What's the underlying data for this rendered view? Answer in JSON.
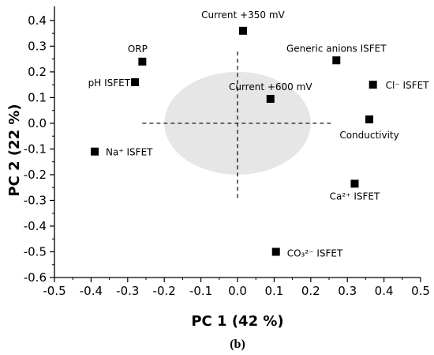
{
  "chart_data": {
    "type": "scatter",
    "title": "",
    "xlabel": "PC 1 (42 %)",
    "ylabel": "PC 2 (22 %)",
    "xlim": [
      -0.5,
      0.5
    ],
    "ylim": [
      -0.6,
      0.45
    ],
    "x_ticks": [
      -0.5,
      -0.4,
      -0.3,
      -0.2,
      -0.1,
      0.0,
      0.1,
      0.2,
      0.3,
      0.4,
      0.5
    ],
    "y_ticks": [
      -0.6,
      -0.5,
      -0.4,
      -0.3,
      -0.2,
      -0.1,
      0.0,
      0.1,
      0.2,
      0.3,
      0.4
    ],
    "x_tick_labels": [
      "-0.5",
      "-0.4",
      "-0.3",
      "-0.2",
      "-0.1",
      "0.0",
      "0.1",
      "0.2",
      "0.3",
      "0.4",
      "0.5"
    ],
    "y_tick_labels": [
      "-0.6",
      "-0.5",
      "-0.4",
      "-0.3",
      "-0.2",
      "-0.1",
      "0.0",
      "0.1",
      "0.2",
      "0.3",
      "0.4"
    ],
    "grid": false,
    "confidence_ellipse": {
      "cx": 0.0,
      "cy": 0.0,
      "rx": 0.2,
      "ry": 0.2,
      "color": "#e6e6e6"
    },
    "origin_crosshair": {
      "x_range": [
        -0.26,
        0.26
      ],
      "y_range": [
        -0.29,
        0.29
      ]
    },
    "marker_color": "#000000",
    "points": [
      {
        "label": "Current +350 mV",
        "x": 0.015,
        "y": 0.36
      },
      {
        "label": "ORP",
        "x": -0.26,
        "y": 0.24
      },
      {
        "label": "pH ISFET",
        "x": -0.28,
        "y": 0.16
      },
      {
        "label": "Generic anions ISFET",
        "x": 0.27,
        "y": 0.245
      },
      {
        "label": "Cl⁻ ISFET",
        "x": 0.37,
        "y": 0.15
      },
      {
        "label": "Current +600 mV",
        "x": 0.09,
        "y": 0.095
      },
      {
        "label": "Conductivity",
        "x": 0.36,
        "y": 0.015
      },
      {
        "label": "Na⁺ ISFET",
        "x": -0.39,
        "y": -0.11
      },
      {
        "label": "Ca²⁺ ISFET",
        "x": 0.32,
        "y": -0.235
      },
      {
        "label": "CO₃²⁻ ISFET",
        "x": 0.105,
        "y": -0.5
      }
    ]
  },
  "caption": "(b)"
}
